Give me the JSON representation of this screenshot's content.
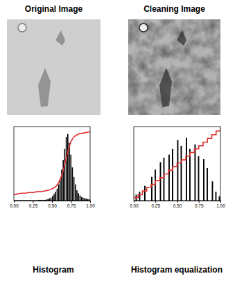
{
  "images": [
    {
      "title": "Original Image"
    },
    {
      "title": "Cleaning Image"
    }
  ],
  "chart_data": [
    {
      "type": "histogram",
      "title": "Histogram",
      "color": "#000000",
      "bins": [
        0,
        0.02,
        0.04,
        0.06,
        0.08,
        0.1,
        0.12,
        0.14,
        0.16,
        0.18,
        0.2,
        0.22,
        0.24,
        0.26,
        0.28,
        0.3,
        0.32,
        0.34,
        0.36,
        0.38,
        0.4,
        0.42,
        0.44,
        0.46,
        0.48,
        0.5,
        0.52,
        0.54,
        0.56,
        0.58,
        0.6,
        0.62,
        0.64,
        0.66,
        0.68,
        0.7,
        0.72,
        0.74,
        0.76,
        0.78,
        0.8,
        0.82,
        0.84,
        0.86,
        0.88,
        0.9,
        0.92,
        0.94,
        0.96,
        0.98,
        1
      ],
      "counts": [
        0.005,
        0.005,
        0.005,
        0.005,
        0.005,
        0.005,
        0.005,
        0.005,
        0.005,
        0.005,
        0.005,
        0.005,
        0.005,
        0.005,
        0.005,
        0.005,
        0.01,
        0.01,
        0.01,
        0.01,
        0.01,
        0.015,
        0.02,
        0.03,
        0.04,
        0.06,
        0.09,
        0.12,
        0.16,
        0.22,
        0.3,
        0.42,
        0.55,
        0.7,
        0.86,
        0.9,
        0.78,
        0.62,
        0.45,
        0.32,
        0.22,
        0.14,
        0.1,
        0.07,
        0.05,
        0.04,
        0.03,
        0.03,
        0.02,
        0.02
      ],
      "series": [
        {
          "type": "line",
          "color": "#e03030",
          "line_style": "solid",
          "x": [
            0,
            0.05,
            0.1,
            0.15,
            0.2,
            0.25,
            0.3,
            0.35,
            0.4,
            0.45,
            0.5,
            0.55,
            0.6,
            0.65,
            0.7,
            0.75,
            0.8,
            0.85,
            0.9,
            0.95,
            1
          ],
          "values": [
            0.08,
            0.09,
            0.1,
            0.1,
            0.11,
            0.11,
            0.12,
            0.12,
            0.13,
            0.14,
            0.16,
            0.19,
            0.27,
            0.42,
            0.63,
            0.8,
            0.87,
            0.9,
            0.91,
            0.92,
            0.93
          ]
        }
      ],
      "xlim": [
        0,
        1
      ],
      "ylim": [
        0,
        1
      ],
      "xticks": [
        {
          "value": 0,
          "label": "0.00"
        },
        {
          "value": 0.25,
          "label": "0.25"
        },
        {
          "value": 0.5,
          "label": "0.50"
        },
        {
          "value": 0.75,
          "label": "0.75"
        },
        {
          "value": 1,
          "label": "1.00"
        }
      ],
      "tick_labels": "x"
    },
    {
      "type": "histogram",
      "title": "Histogram equalization",
      "color": "#000000",
      "bins": [
        0,
        0.02,
        0.04,
        0.06,
        0.08,
        0.1,
        0.12,
        0.14,
        0.16,
        0.18,
        0.2,
        0.22,
        0.24,
        0.26,
        0.28,
        0.3,
        0.32,
        0.34,
        0.36,
        0.38,
        0.4,
        0.42,
        0.44,
        0.46,
        0.48,
        0.5,
        0.52,
        0.54,
        0.56,
        0.58,
        0.6,
        0.62,
        0.64,
        0.66,
        0.68,
        0.7,
        0.72,
        0.74,
        0.76,
        0.78,
        0.8,
        0.82,
        0.84,
        0.86,
        0.88,
        0.9,
        0.92,
        0.94,
        0.96,
        0.98,
        1
      ],
      "counts": [
        0,
        0.08,
        0,
        0.12,
        0,
        0,
        0.2,
        0,
        0,
        0,
        0.32,
        0,
        0.42,
        0,
        0,
        0.52,
        0,
        0.58,
        0,
        0,
        0.62,
        0,
        0.7,
        0,
        0,
        0.82,
        0,
        0.74,
        0,
        0,
        0.85,
        0,
        0.7,
        0,
        0,
        0.76,
        0,
        0.6,
        0,
        0,
        0.56,
        0,
        0.44,
        0,
        0,
        0.26,
        0,
        0.12,
        0,
        0.06
      ],
      "series": [
        {
          "type": "line",
          "color": "#e03030",
          "line_style": "step",
          "x": [
            0,
            0.05,
            0.1,
            0.15,
            0.2,
            0.25,
            0.3,
            0.35,
            0.4,
            0.45,
            0.5,
            0.55,
            0.6,
            0.65,
            0.7,
            0.75,
            0.8,
            0.85,
            0.9,
            0.95,
            1
          ],
          "values": [
            0.04,
            0.08,
            0.13,
            0.18,
            0.22,
            0.27,
            0.31,
            0.36,
            0.41,
            0.46,
            0.51,
            0.55,
            0.6,
            0.65,
            0.7,
            0.74,
            0.79,
            0.84,
            0.89,
            0.94,
            0.99
          ]
        }
      ],
      "xlim": [
        0,
        1
      ],
      "ylim": [
        0,
        1
      ],
      "xticks": [
        {
          "value": 0,
          "label": "0.00"
        },
        {
          "value": 0.25,
          "label": "0.25"
        },
        {
          "value": 0.5,
          "label": "0.50"
        },
        {
          "value": 0.75,
          "label": "0.75"
        },
        {
          "value": 1,
          "label": "1.00"
        }
      ],
      "tick_labels": "x"
    }
  ]
}
